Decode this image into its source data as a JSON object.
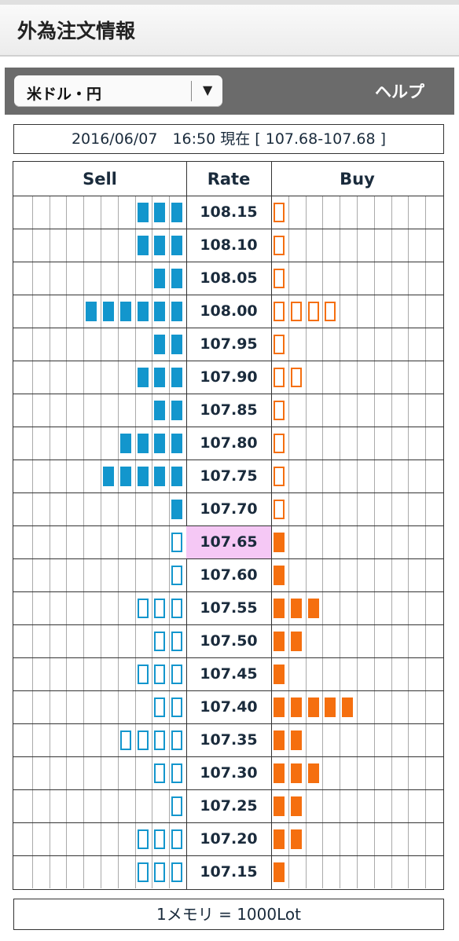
{
  "header": {
    "title": "外為注文情報"
  },
  "toolbar": {
    "currency": "米ドル・円",
    "help": "ヘルプ"
  },
  "timestamp": "2016/06/07　16:50 現在 [ 107.68-107.68 ]",
  "columns": {
    "sell": "Sell",
    "rate": "Rate",
    "buy": "Buy"
  },
  "colors": {
    "sell": "#1396cd",
    "buy": "#f56f0f",
    "current_rate_bg": "#f5c8f5"
  },
  "current_rate": "107.65",
  "rows": [
    {
      "rate": "108.15",
      "sell": 3,
      "sell_type": "filled",
      "buy": 1,
      "buy_type": "outline"
    },
    {
      "rate": "108.10",
      "sell": 3,
      "sell_type": "filled",
      "buy": 1,
      "buy_type": "outline"
    },
    {
      "rate": "108.05",
      "sell": 2,
      "sell_type": "filled",
      "buy": 1,
      "buy_type": "outline"
    },
    {
      "rate": "108.00",
      "sell": 6,
      "sell_type": "filled",
      "buy": 4,
      "buy_type": "outline"
    },
    {
      "rate": "107.95",
      "sell": 2,
      "sell_type": "filled",
      "buy": 1,
      "buy_type": "outline"
    },
    {
      "rate": "107.90",
      "sell": 3,
      "sell_type": "filled",
      "buy": 2,
      "buy_type": "outline"
    },
    {
      "rate": "107.85",
      "sell": 2,
      "sell_type": "filled",
      "buy": 1,
      "buy_type": "outline"
    },
    {
      "rate": "107.80",
      "sell": 4,
      "sell_type": "filled",
      "buy": 1,
      "buy_type": "outline"
    },
    {
      "rate": "107.75",
      "sell": 5,
      "sell_type": "filled",
      "buy": 1,
      "buy_type": "outline"
    },
    {
      "rate": "107.70",
      "sell": 1,
      "sell_type": "filled",
      "buy": 1,
      "buy_type": "outline"
    },
    {
      "rate": "107.65",
      "sell": 1,
      "sell_type": "outline",
      "buy": 1,
      "buy_type": "filled"
    },
    {
      "rate": "107.60",
      "sell": 1,
      "sell_type": "outline",
      "buy": 1,
      "buy_type": "filled"
    },
    {
      "rate": "107.55",
      "sell": 3,
      "sell_type": "outline",
      "buy": 3,
      "buy_type": "filled"
    },
    {
      "rate": "107.50",
      "sell": 2,
      "sell_type": "outline",
      "buy": 2,
      "buy_type": "filled"
    },
    {
      "rate": "107.45",
      "sell": 3,
      "sell_type": "outline",
      "buy": 1,
      "buy_type": "filled"
    },
    {
      "rate": "107.40",
      "sell": 2,
      "sell_type": "outline",
      "buy": 5,
      "buy_type": "filled"
    },
    {
      "rate": "107.35",
      "sell": 4,
      "sell_type": "outline",
      "buy": 2,
      "buy_type": "filled"
    },
    {
      "rate": "107.30",
      "sell": 2,
      "sell_type": "outline",
      "buy": 3,
      "buy_type": "filled"
    },
    {
      "rate": "107.25",
      "sell": 1,
      "sell_type": "outline",
      "buy": 2,
      "buy_type": "filled"
    },
    {
      "rate": "107.20",
      "sell": 3,
      "sell_type": "outline",
      "buy": 2,
      "buy_type": "filled"
    },
    {
      "rate": "107.15",
      "sell": 3,
      "sell_type": "outline",
      "buy": 1,
      "buy_type": "filled"
    }
  ],
  "footer": "1メモリ = 1000Lot"
}
